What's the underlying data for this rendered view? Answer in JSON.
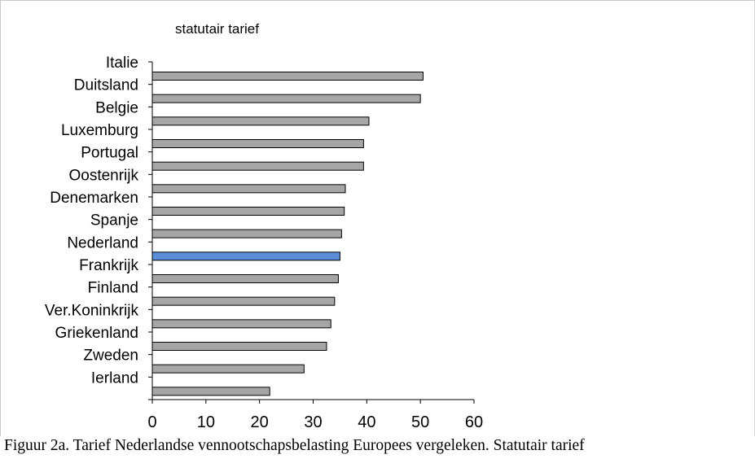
{
  "caption": "Figuur 2a. Tarief Nederlandse vennootschapsbelasting Europees vergeleken. Statutair tarief",
  "chart_data": {
    "type": "bar",
    "orientation": "horizontal",
    "title": "statutair tarief",
    "xlabel": "",
    "ylabel": "",
    "categories": [
      "Italie",
      "Duitsland",
      "Belgie",
      "Luxemburg",
      "Portugal",
      "Oostenrijk",
      "Denemarken",
      "Spanje",
      "Nederland",
      "Frankrijk",
      "Finland",
      "Ver.Koninkrijk",
      "Griekenland",
      "Zweden",
      "Ierland"
    ],
    "values": [
      50.5,
      50.0,
      40.4,
      39.4,
      39.4,
      36.0,
      35.8,
      35.3,
      35.0,
      34.7,
      34.0,
      33.3,
      32.5,
      28.3,
      21.9
    ],
    "xlim": [
      0,
      60
    ],
    "xticks": [
      0,
      10,
      20,
      30,
      40,
      50,
      60
    ],
    "grid": false,
    "legend": "none",
    "colors": {
      "default": "#a6a6a6",
      "highlight": "#5b8ed6",
      "highlight_category": "Nederland"
    }
  }
}
